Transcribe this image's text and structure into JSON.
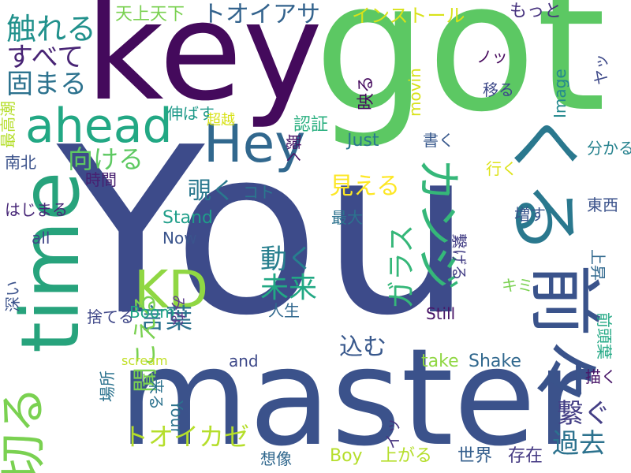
{
  "words": [
    {
      "text": "You",
      "color": "#3d4b8a"
    },
    {
      "text": "got",
      "color": "#5cc863"
    },
    {
      "text": "key",
      "color": "#440a5c"
    },
    {
      "text": "master",
      "color": "#3b528b"
    },
    {
      "text": "time",
      "color": "#27a37c"
    },
    {
      "text": "前々",
      "color": "#3a538b"
    },
    {
      "text": "くる",
      "color": "#2a788e"
    },
    {
      "text": "ahead",
      "color": "#22a884"
    },
    {
      "text": "Hey",
      "color": "#31688e"
    },
    {
      "text": "カンジ",
      "color": "#35b779"
    },
    {
      "text": "KD",
      "color": "#90d743"
    },
    {
      "text": "切る",
      "color": "#7ad151"
    },
    {
      "text": "触れる",
      "color": "#21918c"
    },
    {
      "text": "すべて",
      "color": "#482475"
    },
    {
      "text": "固まる",
      "color": "#2c728e"
    },
    {
      "text": "天上天下",
      "color": "#7ad151"
    },
    {
      "text": "トオイアサ",
      "color": "#33638d"
    },
    {
      "text": "インストール",
      "color": "#d8e219"
    },
    {
      "text": "もっと",
      "color": "#46327e"
    },
    {
      "text": "向ける",
      "color": "#5ec962"
    },
    {
      "text": "覗く",
      "color": "#2a788e"
    },
    {
      "text": "見える",
      "color": "#fde725"
    },
    {
      "text": "動く",
      "color": "#277f8e"
    },
    {
      "text": "未来",
      "color": "#22a884"
    },
    {
      "text": "ガラス",
      "color": "#35b779"
    },
    {
      "text": "言葉",
      "color": "#2c728e"
    },
    {
      "text": "聞こえる",
      "color": "#7ad151"
    },
    {
      "text": "切る",
      "color": "#7ad151"
    },
    {
      "text": "トオイカゼ",
      "color": "#b5de2b"
    },
    {
      "text": "過去",
      "color": "#2c728e"
    },
    {
      "text": "繋ぐ",
      "color": "#433e85"
    },
    {
      "text": "込む",
      "color": "#38588c"
    },
    {
      "text": "Just",
      "color": "#2a788e"
    },
    {
      "text": "Stand",
      "color": "#1f9e89"
    },
    {
      "text": "Boom",
      "color": "#20a486"
    },
    {
      "text": "Still",
      "color": "#481467"
    },
    {
      "text": "Shake",
      "color": "#31688e"
    },
    {
      "text": "take",
      "color": "#90d743"
    },
    {
      "text": "and",
      "color": "#3e4989"
    },
    {
      "text": "scream",
      "color": "#c0df25"
    },
    {
      "text": "Boy",
      "color": "#b5de2b"
    },
    {
      "text": "上がる",
      "color": "#b5de2b"
    },
    {
      "text": "世界",
      "color": "#355f8d"
    },
    {
      "text": "存在",
      "color": "#443983"
    },
    {
      "text": "想像",
      "color": "#31688e"
    },
    {
      "text": "movin",
      "color": "#d8e219"
    },
    {
      "text": "Image",
      "color": "#23888e"
    },
    {
      "text": "最高潮",
      "color": "#b5de2b"
    },
    {
      "text": "南北",
      "color": "#3b528b"
    },
    {
      "text": "イッ",
      "color": "#46327e"
    },
    {
      "text": "映る",
      "color": "#460b5e"
    },
    {
      "text": "ノッ",
      "color": "#46085c"
    },
    {
      "text": "移る",
      "color": "#3e4989"
    },
    {
      "text": "ヤッ",
      "color": "#3e4989"
    },
    {
      "text": "伸ばす",
      "color": "#1f9a8a"
    },
    {
      "text": "超越",
      "color": "#d8e219"
    },
    {
      "text": "認証",
      "color": "#29af7f"
    },
    {
      "text": "聴く",
      "color": "#481467"
    },
    {
      "text": "コト",
      "color": "#2a788e"
    },
    {
      "text": "最大",
      "color": "#2c728e"
    },
    {
      "text": "書く",
      "color": "#38588c"
    },
    {
      "text": "行く",
      "color": "#dde318"
    },
    {
      "text": "分かる",
      "color": "#26828e"
    },
    {
      "text": "東西",
      "color": "#3b528b"
    },
    {
      "text": "増す",
      "color": "#39558c"
    },
    {
      "text": "繋げる",
      "color": "#433e85"
    },
    {
      "text": "上昇",
      "color": "#30688e"
    },
    {
      "text": "キミ",
      "color": "#7ad151"
    },
    {
      "text": "前頭葉",
      "color": "#22a884"
    },
    {
      "text": "描く",
      "color": "#481668"
    },
    {
      "text": "人生",
      "color": "#31688e"
    },
    {
      "text": "みな",
      "color": "#5c3c8c"
    },
    {
      "text": "時間",
      "color": "#481f70"
    },
    {
      "text": "Now",
      "color": "#3a548c"
    },
    {
      "text": "all",
      "color": "#404688"
    },
    {
      "text": "はじまる",
      "color": "#482878"
    },
    {
      "text": "深い",
      "color": "#3b528b"
    },
    {
      "text": "捨てる",
      "color": "#3f4788"
    },
    {
      "text": "場所",
      "color": "#2c728e"
    },
    {
      "text": "来る",
      "color": "#2c728e"
    },
    {
      "text": "Your",
      "color": "#2c728e"
    }
  ]
}
